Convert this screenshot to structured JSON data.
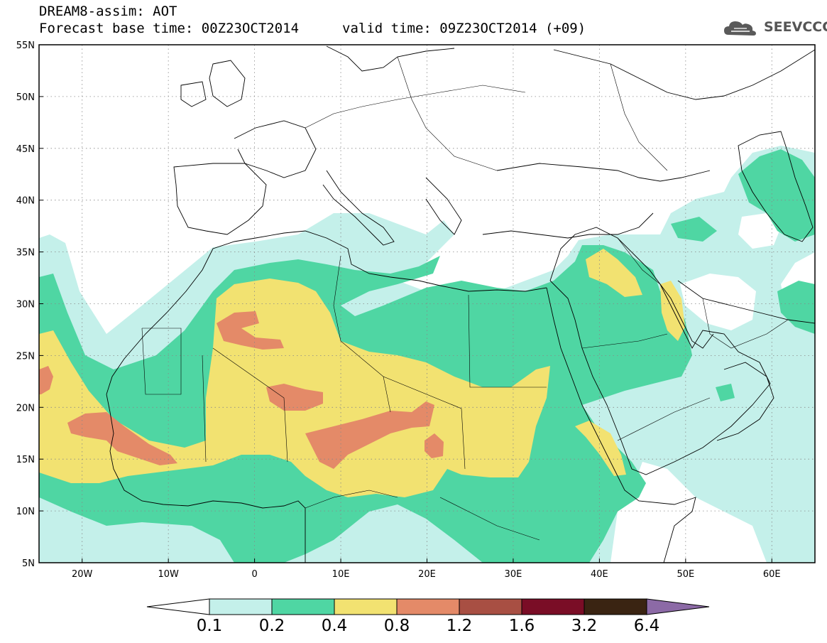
{
  "header": {
    "line1": "DREAM8-assim: AOT",
    "line2": "Forecast base time: 00Z23OCT2014",
    "valid": "valid time: 09Z23OCT2014 (+09)"
  },
  "logo": {
    "text": "SEEVCCC",
    "icon": "cloud-icon"
  },
  "map": {
    "lon_range": [
      -25,
      65
    ],
    "lat_range": [
      5,
      55
    ],
    "lat_ticks": [
      {
        "v": 55,
        "label": "55N"
      },
      {
        "v": 50,
        "label": "50N"
      },
      {
        "v": 45,
        "label": "45N"
      },
      {
        "v": 40,
        "label": "40N"
      },
      {
        "v": 35,
        "label": "35N"
      },
      {
        "v": 30,
        "label": "30N"
      },
      {
        "v": 25,
        "label": "25N"
      },
      {
        "v": 20,
        "label": "20N"
      },
      {
        "v": 15,
        "label": "15N"
      },
      {
        "v": 10,
        "label": "10N"
      },
      {
        "v": 5,
        "label": "5N"
      }
    ],
    "lon_ticks": [
      {
        "v": -20,
        "label": "20W"
      },
      {
        "v": -10,
        "label": "10W"
      },
      {
        "v": 0,
        "label": "0"
      },
      {
        "v": 10,
        "label": "10E"
      },
      {
        "v": 20,
        "label": "20E"
      },
      {
        "v": 30,
        "label": "30E"
      },
      {
        "v": 40,
        "label": "40E"
      },
      {
        "v": 50,
        "label": "50E"
      },
      {
        "v": 60,
        "label": "60E"
      }
    ],
    "grid": "dotted",
    "colors": {
      "c01": "#c4f0ea",
      "c02": "#4fd6a3",
      "c04": "#f2e271",
      "c08": "#e48a68",
      "c12": "#a84f43",
      "c16": "#7a0d26",
      "c32": "#3a2412",
      "c64": "#8c6aa6",
      "coast": "#000000"
    }
  },
  "colorbar": {
    "labels": [
      "0.1",
      "0.2",
      "0.4",
      "0.8",
      "1.2",
      "1.6",
      "3.2",
      "6.4"
    ],
    "bins": [
      "#c4f0ea",
      "#4fd6a3",
      "#f2e271",
      "#e48a68",
      "#a84f43",
      "#7a0d26",
      "#3a2412"
    ],
    "over_color": "#8c6aa6",
    "under_color": "#ffffff"
  }
}
